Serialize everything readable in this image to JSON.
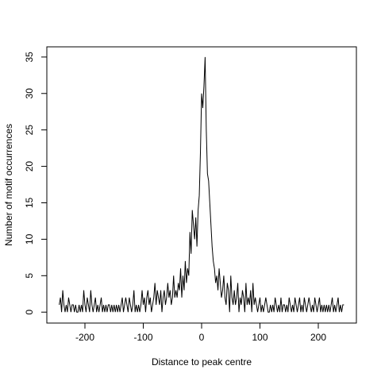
{
  "chart_data": {
    "type": "line",
    "x_label": "Distance to peak centre",
    "y_label": "Number of motif occurrences",
    "x": [
      -244,
      -242,
      -240,
      -238,
      -236,
      -234,
      -232,
      -230,
      -228,
      -226,
      -224,
      -222,
      -220,
      -218,
      -216,
      -214,
      -212,
      -210,
      -208,
      -206,
      -204,
      -202,
      -200,
      -198,
      -196,
      -194,
      -192,
      -190,
      -188,
      -186,
      -184,
      -182,
      -180,
      -178,
      -176,
      -174,
      -172,
      -170,
      -168,
      -166,
      -164,
      -162,
      -160,
      -158,
      -156,
      -154,
      -152,
      -150,
      -148,
      -146,
      -144,
      -142,
      -140,
      -138,
      -136,
      -134,
      -132,
      -130,
      -128,
      -126,
      -124,
      -122,
      -120,
      -118,
      -116,
      -114,
      -112,
      -110,
      -108,
      -106,
      -104,
      -102,
      -100,
      -98,
      -96,
      -94,
      -92,
      -90,
      -88,
      -86,
      -84,
      -82,
      -80,
      -78,
      -76,
      -74,
      -72,
      -70,
      -68,
      -66,
      -64,
      -62,
      -60,
      -58,
      -56,
      -54,
      -52,
      -50,
      -48,
      -46,
      -44,
      -42,
      -40,
      -38,
      -36,
      -34,
      -32,
      -30,
      -28,
      -26,
      -24,
      -22,
      -20,
      -18,
      -16,
      -14,
      -12,
      -10,
      -8,
      -6,
      -4,
      -2,
      0,
      2,
      4,
      6,
      8,
      10,
      12,
      14,
      16,
      18,
      20,
      22,
      24,
      26,
      28,
      30,
      32,
      34,
      36,
      38,
      40,
      42,
      44,
      46,
      48,
      50,
      52,
      54,
      56,
      58,
      60,
      62,
      64,
      66,
      68,
      70,
      72,
      74,
      76,
      78,
      80,
      82,
      84,
      86,
      88,
      90,
      92,
      94,
      96,
      98,
      100,
      102,
      104,
      106,
      108,
      110,
      112,
      114,
      116,
      118,
      120,
      122,
      124,
      126,
      128,
      130,
      132,
      134,
      136,
      138,
      140,
      142,
      144,
      146,
      148,
      150,
      152,
      154,
      156,
      158,
      160,
      162,
      164,
      166,
      168,
      170,
      172,
      174,
      176,
      178,
      180,
      182,
      184,
      186,
      188,
      190,
      192,
      194,
      196,
      198,
      200,
      202,
      204,
      206,
      208,
      210,
      212,
      214,
      216,
      218,
      220,
      222,
      224,
      226,
      228,
      230,
      232,
      234,
      236,
      238,
      240,
      242,
      244
    ],
    "series": [
      {
        "color": "#000000",
        "values": [
          1,
          2,
          0,
          3,
          1,
          0,
          1,
          0,
          2,
          1,
          0,
          1,
          1,
          0,
          1,
          0,
          0,
          1,
          0,
          1,
          0,
          3,
          1,
          0,
          2,
          1,
          0,
          3,
          1,
          0,
          1,
          2,
          0,
          1,
          0,
          1,
          2,
          0,
          1,
          0,
          1,
          0,
          1,
          1,
          0,
          1,
          0,
          1,
          0,
          1,
          0,
          1,
          0,
          1,
          2,
          0,
          1,
          2,
          1,
          0,
          2,
          1,
          0,
          1,
          3,
          0,
          1,
          0,
          1,
          0,
          1,
          3,
          1,
          2,
          0,
          2,
          3,
          1,
          2,
          0,
          1,
          2,
          4,
          1,
          3,
          2,
          1,
          3,
          0,
          2,
          3,
          1,
          2,
          4,
          2,
          3,
          1,
          2,
          5,
          2,
          3,
          2,
          4,
          3,
          6,
          2,
          5,
          3,
          7,
          4,
          6,
          5,
          11,
          8,
          14,
          12,
          10,
          13,
          9,
          14,
          16,
          22,
          30,
          28,
          31,
          35,
          25,
          19,
          18,
          15,
          12,
          9,
          7,
          6,
          4,
          5,
          3,
          6,
          4,
          2,
          3,
          5,
          2,
          1,
          4,
          3,
          0,
          5,
          2,
          1,
          3,
          1,
          2,
          4,
          0,
          2,
          1,
          3,
          2,
          0,
          4,
          1,
          2,
          1,
          3,
          0,
          4,
          1,
          2,
          1,
          0,
          1,
          2,
          0,
          1,
          0,
          1,
          2,
          1,
          0,
          0,
          1,
          0,
          1,
          0,
          2,
          1,
          0,
          1,
          0,
          2,
          0,
          1,
          1,
          0,
          1,
          0,
          2,
          1,
          0,
          1,
          0,
          2,
          1,
          0,
          1,
          2,
          0,
          1,
          0,
          2,
          1,
          0,
          1,
          2,
          1,
          0,
          1,
          0,
          2,
          1,
          0,
          1,
          2,
          0,
          1,
          0,
          1,
          0,
          1,
          0,
          1,
          0,
          1,
          2,
          0,
          1,
          0,
          1,
          2,
          0,
          1,
          0,
          1,
          1
        ]
      }
    ],
    "xlim": [
      -265.3,
      265.3
    ],
    "xticks": [
      -200,
      -100,
      0,
      100,
      200
    ],
    "ylim": [
      -1.5,
      36.4
    ],
    "yticks": [
      0,
      5,
      10,
      15,
      20,
      25,
      30,
      35
    ]
  }
}
